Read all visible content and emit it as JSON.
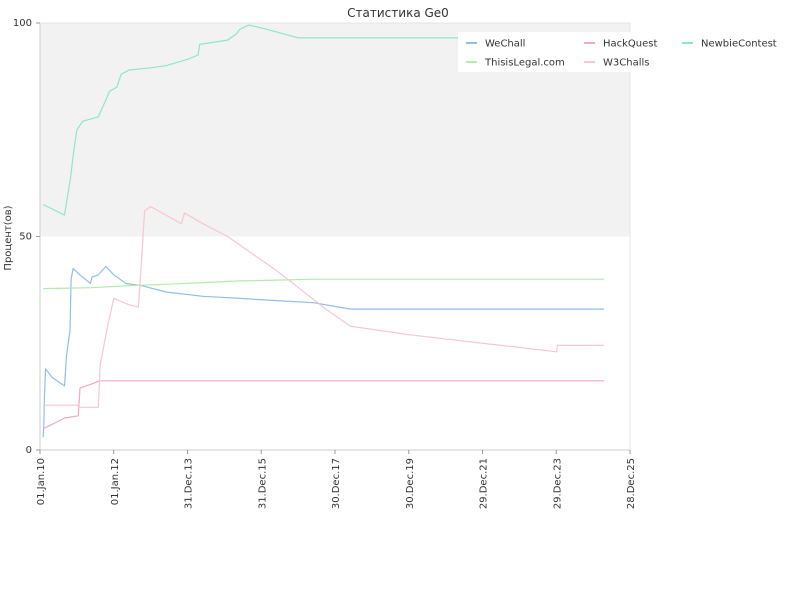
{
  "chart_data": {
    "type": "line",
    "title": "Статистика Ge0",
    "xlabel": "",
    "ylabel": "Процент(ов)",
    "ylim": [
      0,
      100
    ],
    "yticks": [
      0,
      50,
      100
    ],
    "xlim": [
      "2010-01-01",
      "2025-12-28"
    ],
    "xticks": [
      {
        "date": "2010-01-01",
        "label": "01.Jan.10"
      },
      {
        "date": "2012-01-01",
        "label": "01.Jan.12"
      },
      {
        "date": "2013-12-31",
        "label": "31.Dec.13"
      },
      {
        "date": "2015-12-31",
        "label": "31.Dec.15"
      },
      {
        "date": "2017-12-30",
        "label": "30.Dec.17"
      },
      {
        "date": "2019-12-30",
        "label": "30.Dec.19"
      },
      {
        "date": "2021-12-29",
        "label": "29.Dec.21"
      },
      {
        "date": "2023-12-29",
        "label": "29.Dec.23"
      },
      {
        "date": "2025-12-28",
        "label": "28.Dec.25"
      }
    ],
    "grid": false,
    "shaded_band": [
      50,
      100
    ],
    "legend_position": "top-right",
    "series": [
      {
        "name": "WeChall",
        "color": "#8fbfe8",
        "points": [
          [
            "2010-02-01",
            3
          ],
          [
            "2010-02-07",
            5
          ],
          [
            "2010-02-15",
            13
          ],
          [
            "2010-02-25",
            19
          ],
          [
            "2010-05-01",
            17
          ],
          [
            "2010-07-01",
            16
          ],
          [
            "2010-09-01",
            15
          ],
          [
            "2010-09-20",
            22
          ],
          [
            "2010-10-25",
            28
          ],
          [
            "2010-11-05",
            40
          ],
          [
            "2010-11-25",
            42.5
          ],
          [
            "2011-02-01",
            41
          ],
          [
            "2011-05-15",
            39
          ],
          [
            "2011-06-01",
            40.5
          ],
          [
            "2011-08-01",
            41
          ],
          [
            "2011-10-15",
            43
          ],
          [
            "2012-01-01",
            41
          ],
          [
            "2012-05-01",
            39
          ],
          [
            "2012-10-01",
            38.5
          ],
          [
            "2013-06-01",
            37
          ],
          [
            "2014-06-01",
            36
          ],
          [
            "2015-06-01",
            35.5
          ],
          [
            "2016-06-01",
            35
          ],
          [
            "2017-06-01",
            34.5
          ],
          [
            "2018-06-01",
            33
          ],
          [
            "2020-01-01",
            33
          ],
          [
            "2022-01-01",
            33
          ],
          [
            "2024-01-01",
            33
          ],
          [
            "2025-04-15",
            33
          ]
        ]
      },
      {
        "name": "HackQuest",
        "color": "#f4a8c8",
        "points": [
          [
            "2010-02-01",
            5
          ],
          [
            "2010-05-01",
            6
          ],
          [
            "2010-09-01",
            7.5
          ],
          [
            "2011-01-15",
            8
          ],
          [
            "2011-02-01",
            14.5
          ],
          [
            "2011-06-01",
            15.5
          ],
          [
            "2011-08-15",
            16.2
          ],
          [
            "2012-06-01",
            16.2
          ],
          [
            "2015-01-01",
            16.2
          ],
          [
            "2020-01-01",
            16.2
          ],
          [
            "2025-04-15",
            16.2
          ]
        ]
      },
      {
        "name": "NewbieContest",
        "color": "#8ee8c4",
        "points": [
          [
            "2010-02-01",
            57.5
          ],
          [
            "2010-09-01",
            55
          ],
          [
            "2010-11-01",
            64
          ],
          [
            "2010-12-01",
            70
          ],
          [
            "2011-01-01",
            75
          ],
          [
            "2011-03-01",
            77
          ],
          [
            "2011-08-01",
            78
          ],
          [
            "2011-10-15",
            82
          ],
          [
            "2011-11-20",
            84
          ],
          [
            "2012-02-01",
            85
          ],
          [
            "2012-03-15",
            88
          ],
          [
            "2012-06-01",
            89
          ],
          [
            "2013-01-01",
            89.5
          ],
          [
            "2013-06-01",
            90
          ],
          [
            "2014-01-01",
            91.5
          ],
          [
            "2014-04-15",
            92.5
          ],
          [
            "2014-05-01",
            95
          ],
          [
            "2015-02-01",
            96
          ],
          [
            "2015-05-01",
            97.5
          ],
          [
            "2015-06-01",
            98.5
          ],
          [
            "2015-09-01",
            99.5
          ],
          [
            "2016-03-01",
            98.5
          ],
          [
            "2017-01-01",
            96.5
          ],
          [
            "2019-01-01",
            96.5
          ],
          [
            "2021-01-01",
            96.5
          ],
          [
            "2022-04-01",
            96.5
          ]
        ]
      },
      {
        "name": "ThisisLegal.com",
        "color": "#b0ecaa",
        "points": [
          [
            "2010-02-01",
            37.8
          ],
          [
            "2011-06-01",
            38
          ],
          [
            "2012-06-01",
            38.5
          ],
          [
            "2013-06-01",
            38.8
          ],
          [
            "2014-06-01",
            39.2
          ],
          [
            "2015-06-01",
            39.6
          ],
          [
            "2016-06-01",
            39.8
          ],
          [
            "2017-06-01",
            40
          ],
          [
            "2020-01-01",
            40
          ],
          [
            "2025-04-15",
            40
          ]
        ]
      },
      {
        "name": "W3Challs",
        "color": "#f7c6cf",
        "points": [
          [
            "2010-02-01",
            10.5
          ],
          [
            "2010-06-01",
            10.5
          ],
          [
            "2011-01-10",
            10.5
          ],
          [
            "2011-01-20",
            10
          ],
          [
            "2011-08-01",
            10
          ],
          [
            "2011-08-20",
            20
          ],
          [
            "2011-11-01",
            29
          ],
          [
            "2012-01-01",
            35.5
          ],
          [
            "2012-06-01",
            34
          ],
          [
            "2012-09-01",
            33.5
          ],
          [
            "2012-10-01",
            44
          ],
          [
            "2012-11-01",
            56
          ],
          [
            "2013-01-01",
            57
          ],
          [
            "2013-06-01",
            55
          ],
          [
            "2013-11-01",
            53
          ],
          [
            "2013-12-01",
            55.5
          ],
          [
            "2014-06-01",
            53
          ],
          [
            "2015-02-01",
            50
          ],
          [
            "2016-06-01",
            42
          ],
          [
            "2017-10-01",
            33
          ],
          [
            "2018-06-01",
            29
          ],
          [
            "2020-01-01",
            27
          ],
          [
            "2022-01-01",
            25
          ],
          [
            "2023-01-01",
            24
          ],
          [
            "2024-01-01",
            23
          ],
          [
            "2024-01-10",
            24.5
          ],
          [
            "2025-04-15",
            24.5
          ]
        ]
      }
    ]
  }
}
